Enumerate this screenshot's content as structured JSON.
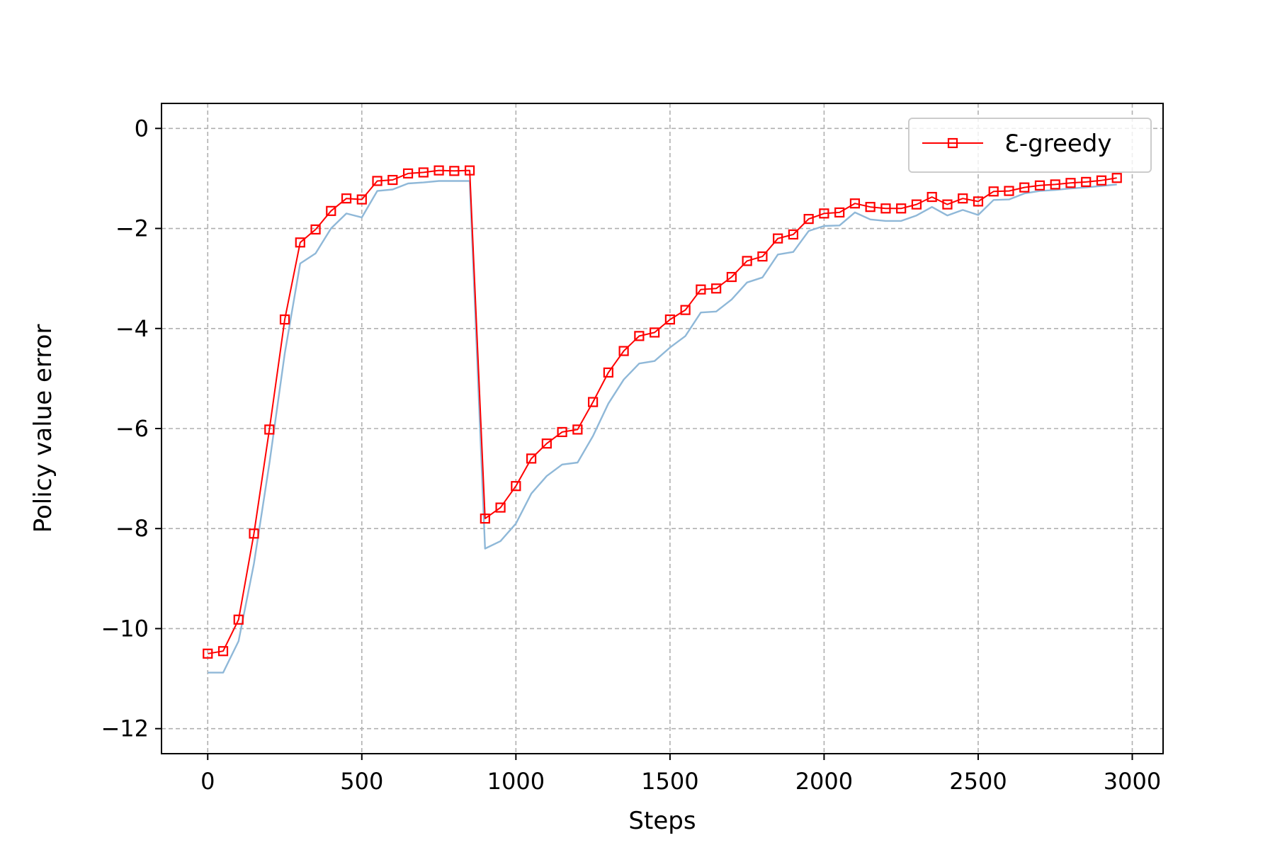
{
  "chart_data": {
    "type": "line",
    "title": "",
    "xlabel": "Steps",
    "ylabel": "Policy value error",
    "xlim": [
      -150,
      3100
    ],
    "ylim": [
      -12.5,
      0.5
    ],
    "xticks": [
      0,
      500,
      1000,
      1500,
      2000,
      2500,
      3000
    ],
    "yticks": [
      0,
      -2,
      -4,
      -6,
      -8,
      -10,
      -12
    ],
    "xtick_labels": [
      "0",
      "500",
      "1000",
      "1500",
      "2000",
      "2500",
      "3000"
    ],
    "ytick_labels": [
      "0",
      "−2",
      "−4",
      "−6",
      "−8",
      "−10",
      "−12"
    ],
    "grid": true,
    "legend_position": "top-right",
    "x": [
      0,
      50,
      100,
      150,
      200,
      250,
      300,
      350,
      400,
      450,
      500,
      550,
      600,
      650,
      700,
      750,
      800,
      850,
      900,
      950,
      1000,
      1050,
      1100,
      1150,
      1200,
      1250,
      1300,
      1350,
      1400,
      1450,
      1500,
      1550,
      1600,
      1650,
      1700,
      1750,
      1800,
      1850,
      1900,
      1950,
      2000,
      2050,
      2100,
      2150,
      2200,
      2250,
      2300,
      2350,
      2400,
      2450,
      2500,
      2550,
      2600,
      2650,
      2700,
      2750,
      2800,
      2850,
      2900,
      2950
    ],
    "series": [
      {
        "name": "Ɛ-greedy",
        "color": "#ff0000",
        "marker": "square",
        "values": [
          -10.5,
          -10.45,
          -9.82,
          -8.1,
          -6.02,
          -3.82,
          -2.28,
          -2.02,
          -1.65,
          -1.4,
          -1.42,
          -1.05,
          -1.03,
          -0.9,
          -0.88,
          -0.84,
          -0.85,
          -0.84,
          -7.8,
          -7.58,
          -7.15,
          -6.6,
          -6.3,
          -6.07,
          -6.02,
          -5.47,
          -4.88,
          -4.45,
          -4.15,
          -4.08,
          -3.82,
          -3.63,
          -3.22,
          -3.2,
          -2.97,
          -2.65,
          -2.56,
          -2.2,
          -2.12,
          -1.81,
          -1.7,
          -1.68,
          -1.5,
          -1.57,
          -1.6,
          -1.6,
          -1.52,
          -1.37,
          -1.52,
          -1.4,
          -1.46,
          -1.26,
          -1.25,
          -1.18,
          -1.14,
          -1.12,
          -1.09,
          -1.07,
          -1.04,
          -0.99
        ]
      },
      {
        "name": "",
        "color": "#8fb8d8",
        "marker": "none",
        "values": [
          -10.88,
          -10.88,
          -10.25,
          -8.7,
          -6.7,
          -4.5,
          -2.7,
          -2.5,
          -2.0,
          -1.7,
          -1.78,
          -1.25,
          -1.22,
          -1.1,
          -1.08,
          -1.05,
          -1.05,
          -1.05,
          -8.4,
          -8.25,
          -7.9,
          -7.3,
          -6.95,
          -6.72,
          -6.68,
          -6.15,
          -5.5,
          -5.02,
          -4.7,
          -4.65,
          -4.38,
          -4.15,
          -3.68,
          -3.66,
          -3.42,
          -3.08,
          -2.98,
          -2.52,
          -2.47,
          -2.05,
          -1.95,
          -1.94,
          -1.68,
          -1.82,
          -1.85,
          -1.85,
          -1.74,
          -1.57,
          -1.74,
          -1.63,
          -1.73,
          -1.43,
          -1.42,
          -1.3,
          -1.25,
          -1.23,
          -1.2,
          -1.18,
          -1.15,
          -1.12
        ]
      }
    ]
  }
}
